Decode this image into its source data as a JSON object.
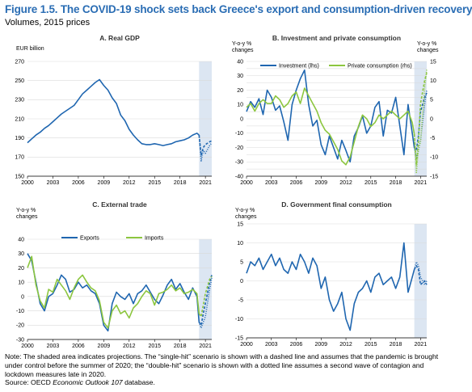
{
  "figure": {
    "title": "Figure 1.5. The COVID-19 shock sets back Greece's export and consumption-driven recovery",
    "subtitle": "Volumes, 2015 prices"
  },
  "notes": {
    "note": "Note: The shaded area indicates projections. The “single-hit” scenario is shown with a dashed line and assumes that the pandemic is brought under control before the summer of 2020; the “double-hit” scenario is shown with a dotted line assumes a second wave of contagion and lockdown measures late in 2020.",
    "source_prefix": "Source: OECD ",
    "source_italic": "Economic Outlook 107",
    "source_suffix": " database."
  },
  "colors": {
    "title": "#2a6db4",
    "blue": "#1f66b0",
    "green": "#8cc63f",
    "projection_shade": "#dce6f2",
    "grid": "#d9d9d9"
  },
  "chart_data": [
    {
      "id": "A",
      "type": "line",
      "title": "A. Real GDP",
      "unit_label": "EUR billion",
      "ylim": [
        150,
        270
      ],
      "yticks": [
        150,
        170,
        190,
        210,
        230,
        250,
        270
      ],
      "xlim": [
        2000,
        2021.75
      ],
      "xticks": [
        2000,
        2003,
        2006,
        2009,
        2012,
        2015,
        2018,
        2021
      ],
      "projection_start": 2020.25,
      "series": [
        {
          "axis": "left",
          "color": "#1f66b0",
          "x": [
            2000,
            2000.5,
            2001,
            2001.5,
            2002,
            2002.5,
            2003,
            2003.5,
            2004,
            2004.5,
            2005,
            2005.5,
            2006,
            2006.5,
            2007,
            2007.5,
            2008,
            2008.5,
            2009,
            2009.5,
            2010,
            2010.5,
            2011,
            2011.5,
            2012,
            2012.5,
            2013,
            2013.5,
            2014,
            2014.5,
            2015,
            2015.5,
            2016,
            2016.5,
            2017,
            2017.5,
            2018,
            2018.5,
            2019,
            2019.5,
            2020,
            2020.25
          ],
          "values": [
            185,
            189,
            193,
            196,
            200,
            203,
            207,
            211,
            215,
            218,
            221,
            224,
            230,
            236,
            240,
            244,
            248,
            251,
            245,
            240,
            232,
            226,
            214,
            208,
            199,
            193,
            188,
            184,
            183,
            183,
            184,
            183,
            182,
            183,
            184,
            186,
            187,
            188,
            190,
            193,
            195,
            193
          ]
        },
        {
          "axis": "left",
          "color": "#1f66b0",
          "dash": "dashed",
          "x": [
            2020.25,
            2020.5,
            2020.75,
            2021,
            2021.5,
            2021.75
          ],
          "values": [
            193,
            172,
            180,
            183,
            186,
            187
          ]
        },
        {
          "axis": "left",
          "color": "#1f66b0",
          "dash": "dotted",
          "x": [
            2020.25,
            2020.5,
            2020.75,
            2021,
            2021.5,
            2021.75
          ],
          "values": [
            193,
            166,
            177,
            174,
            182,
            185
          ]
        }
      ]
    },
    {
      "id": "B",
      "type": "line",
      "title": "B. Investment and private consumption",
      "left_unit_label": "Y-o-y %\nchanges",
      "right_unit_label": "Y-o-y %\nchanges",
      "ylim": [
        -40,
        40
      ],
      "yticks": [
        -40,
        -35,
        -30,
        -25,
        -20,
        -15,
        -10,
        -5,
        0,
        5,
        10,
        15,
        20,
        25,
        30,
        35,
        40
      ],
      "yticklabels": [
        "-40",
        "",
        "-30",
        "",
        "-20",
        "",
        "-10",
        "",
        "0",
        "",
        "10",
        "",
        "20",
        "",
        "30",
        "",
        "40"
      ],
      "ylim_right": [
        -15,
        15
      ],
      "yticks_right": [
        -15,
        -10,
        -5,
        0,
        5,
        10,
        15
      ],
      "xlim": [
        2000,
        2021.75
      ],
      "xticks": [
        2000,
        2003,
        2006,
        2009,
        2012,
        2015,
        2018,
        2021
      ],
      "projection_start": 2020.25,
      "legend": [
        {
          "name": "Investment (lhs)",
          "color": "#1f66b0"
        },
        {
          "name": "Private consumption (rhs)",
          "color": "#8cc63f"
        }
      ],
      "series": [
        {
          "name": "Investment (lhs)",
          "axis": "left",
          "color": "#1f66b0",
          "x": [
            2000,
            2000.5,
            2001,
            2001.5,
            2002,
            2002.5,
            2003,
            2003.5,
            2004,
            2004.5,
            2005,
            2005.5,
            2006,
            2006.5,
            2007,
            2007.5,
            2008,
            2008.5,
            2009,
            2009.5,
            2010,
            2010.5,
            2011,
            2011.5,
            2012,
            2012.5,
            2013,
            2013.5,
            2014,
            2014.5,
            2015,
            2015.5,
            2016,
            2016.5,
            2017,
            2017.5,
            2018,
            2018.5,
            2019,
            2019.5,
            2020,
            2020.25
          ],
          "values": [
            5,
            12,
            8,
            14,
            3,
            20,
            15,
            6,
            9,
            -2,
            -15,
            10,
            20,
            28,
            34,
            10,
            -5,
            -1,
            -18,
            -25,
            -12,
            -20,
            -28,
            -15,
            -22,
            -30,
            -12,
            -6,
            2,
            -10,
            -5,
            8,
            12,
            -12,
            6,
            4,
            15,
            -5,
            -25,
            10,
            -10,
            -20
          ]
        },
        {
          "name": "Investment (lhs)",
          "axis": "left",
          "color": "#1f66b0",
          "dash": "dashed",
          "x": [
            2020.25,
            2020.5,
            2020.75,
            2021,
            2021.5,
            2021.75
          ],
          "values": [
            -20,
            -22,
            -12,
            5,
            15,
            18
          ]
        },
        {
          "name": "Investment (lhs)",
          "axis": "left",
          "color": "#1f66b0",
          "dash": "dotted",
          "x": [
            2020.25,
            2020.5,
            2020.75,
            2021,
            2021.5,
            2021.75
          ],
          "values": [
            -20,
            -28,
            -22,
            -15,
            10,
            20
          ]
        },
        {
          "name": "Private consumption (rhs)",
          "axis": "right",
          "color": "#8cc63f",
          "x": [
            2000,
            2000.5,
            2001,
            2001.5,
            2002,
            2002.5,
            2003,
            2003.5,
            2004,
            2004.5,
            2005,
            2005.5,
            2006,
            2006.5,
            2007,
            2007.5,
            2008,
            2008.5,
            2009,
            2009.5,
            2010,
            2010.5,
            2011,
            2011.5,
            2012,
            2012.5,
            2013,
            2013.5,
            2014,
            2014.5,
            2015,
            2015.5,
            2016,
            2016.5,
            2017,
            2017.5,
            2018,
            2018.5,
            2019,
            2019.5,
            2020,
            2020.25
          ],
          "values": [
            3,
            4,
            2,
            4,
            5,
            4,
            4,
            6,
            5,
            3,
            4,
            6,
            7,
            4,
            8,
            6,
            4,
            2,
            -1,
            -3,
            -4,
            -6,
            -8,
            -11,
            -12,
            -10,
            -6,
            -2,
            1,
            0,
            -2,
            -1,
            1,
            0,
            1,
            2,
            1,
            0,
            1,
            2,
            -1,
            -4
          ]
        },
        {
          "name": "Private consumption (rhs)",
          "axis": "right",
          "color": "#8cc63f",
          "dash": "dashed",
          "x": [
            2020.25,
            2020.5,
            2020.75,
            2021,
            2021.5,
            2021.75
          ],
          "values": [
            -4,
            -12,
            -6,
            4,
            10,
            12
          ]
        },
        {
          "name": "Private consumption (rhs)",
          "axis": "right",
          "color": "#8cc63f",
          "dash": "dotted",
          "x": [
            2020.25,
            2020.5,
            2020.75,
            2021,
            2021.5,
            2021.75
          ],
          "values": [
            -4,
            -14,
            -8,
            -6,
            8,
            13
          ]
        }
      ]
    },
    {
      "id": "C",
      "type": "line",
      "title": "C. External trade",
      "unit_label": "Y-o-y %\nchanges",
      "ylim": [
        -30,
        40
      ],
      "yticks": [
        -30,
        -20,
        -10,
        0,
        10,
        20,
        30,
        40
      ],
      "xlim": [
        2000,
        2021.75
      ],
      "xticks": [
        2000,
        2003,
        2006,
        2009,
        2012,
        2015,
        2018,
        2021
      ],
      "projection_start": 2020.25,
      "legend": [
        {
          "name": "Exports",
          "color": "#1f66b0"
        },
        {
          "name": "Imports",
          "color": "#8cc63f"
        }
      ],
      "series": [
        {
          "name": "Exports",
          "axis": "left",
          "color": "#1f66b0",
          "x": [
            2000,
            2000.5,
            2001,
            2001.5,
            2002,
            2002.5,
            2003,
            2003.5,
            2004,
            2004.5,
            2005,
            2005.5,
            2006,
            2006.5,
            2007,
            2007.5,
            2008,
            2008.5,
            2009,
            2009.5,
            2010,
            2010.5,
            2011,
            2011.5,
            2012,
            2012.5,
            2013,
            2013.5,
            2014,
            2014.5,
            2015,
            2015.5,
            2016,
            2016.5,
            2017,
            2017.5,
            2018,
            2018.5,
            2019,
            2019.5,
            2020,
            2020.25
          ],
          "values": [
            30,
            25,
            10,
            -5,
            -10,
            0,
            2,
            8,
            15,
            12,
            3,
            5,
            10,
            6,
            8,
            4,
            2,
            -5,
            -20,
            -24,
            -5,
            3,
            0,
            -2,
            2,
            -5,
            2,
            4,
            8,
            3,
            -2,
            -5,
            1,
            8,
            12,
            5,
            9,
            3,
            -2,
            6,
            0,
            -18
          ]
        },
        {
          "name": "Exports",
          "axis": "left",
          "color": "#1f66b0",
          "dash": "dashed",
          "x": [
            2020.25,
            2020.5,
            2020.75,
            2021,
            2021.5,
            2021.75
          ],
          "values": [
            -18,
            -20,
            -12,
            -5,
            10,
            15
          ]
        },
        {
          "name": "Exports",
          "axis": "left",
          "color": "#1f66b0",
          "dash": "dotted",
          "x": [
            2020.25,
            2020.5,
            2020.75,
            2021,
            2021.5,
            2021.75
          ],
          "values": [
            -18,
            -22,
            -18,
            -14,
            5,
            13
          ]
        },
        {
          "name": "Imports",
          "axis": "left",
          "color": "#8cc63f",
          "x": [
            2000,
            2000.5,
            2001,
            2001.5,
            2002,
            2002.5,
            2003,
            2003.5,
            2004,
            2004.5,
            2005,
            2005.5,
            2006,
            2006.5,
            2007,
            2007.5,
            2008,
            2008.5,
            2009,
            2009.5,
            2010,
            2010.5,
            2011,
            2011.5,
            2012,
            2012.5,
            2013,
            2013.5,
            2014,
            2014.5,
            2015,
            2015.5,
            2016,
            2016.5,
            2017,
            2017.5,
            2018,
            2018.5,
            2019,
            2019.5,
            2020,
            2020.25
          ],
          "values": [
            20,
            28,
            8,
            -3,
            -8,
            5,
            3,
            12,
            8,
            4,
            -2,
            6,
            12,
            15,
            10,
            6,
            4,
            -3,
            -18,
            -22,
            -10,
            -6,
            -12,
            -10,
            -15,
            -8,
            -5,
            0,
            4,
            2,
            -6,
            2,
            3,
            5,
            8,
            4,
            6,
            2,
            3,
            5,
            2,
            -12
          ]
        },
        {
          "name": "Imports",
          "axis": "left",
          "color": "#8cc63f",
          "dash": "dashed",
          "x": [
            2020.25,
            2020.5,
            2020.75,
            2021,
            2021.5,
            2021.75
          ],
          "values": [
            -12,
            -14,
            -6,
            2,
            12,
            14
          ]
        }
      ]
    },
    {
      "id": "D",
      "type": "line",
      "title": "D. Government final consumption",
      "unit_label": "Y-o-y %\nchanges",
      "ylim": [
        -15,
        15
      ],
      "yticks": [
        -15,
        -10,
        -5,
        0,
        5,
        10,
        15
      ],
      "xlim": [
        2000,
        2021.75
      ],
      "xticks": [
        2000,
        2003,
        2006,
        2009,
        2012,
        2015,
        2018,
        2021
      ],
      "projection_start": 2020.25,
      "series": [
        {
          "axis": "left",
          "color": "#1f66b0",
          "x": [
            2000,
            2000.5,
            2001,
            2001.5,
            2002,
            2002.5,
            2003,
            2003.5,
            2004,
            2004.5,
            2005,
            2005.5,
            2006,
            2006.5,
            2007,
            2007.5,
            2008,
            2008.5,
            2009,
            2009.5,
            2010,
            2010.5,
            2011,
            2011.5,
            2012,
            2012.5,
            2013,
            2013.5,
            2014,
            2014.5,
            2015,
            2015.5,
            2016,
            2016.5,
            2017,
            2017.5,
            2018,
            2018.5,
            2019,
            2019.5,
            2020,
            2020.25
          ],
          "values": [
            2,
            5,
            4,
            6,
            3,
            5,
            7,
            4,
            6,
            3,
            2,
            5,
            3,
            7,
            5,
            2,
            6,
            4,
            -2,
            1,
            -5,
            -8,
            -6,
            -3,
            -10,
            -13,
            -6,
            -3,
            -2,
            0,
            -3,
            1,
            2,
            -1,
            0,
            1,
            -2,
            1,
            10,
            -3,
            1,
            3
          ]
        },
        {
          "axis": "left",
          "color": "#1f66b0",
          "dash": "dashed",
          "x": [
            2020.25,
            2020.5,
            2020.75,
            2021,
            2021.5,
            2021.75
          ],
          "values": [
            3,
            4,
            3,
            -1,
            0,
            -1
          ]
        },
        {
          "axis": "left",
          "color": "#1f66b0",
          "dash": "dotted",
          "x": [
            2020.25,
            2020.5,
            2020.75,
            2021,
            2021.5,
            2021.75
          ],
          "values": [
            3,
            5,
            4,
            1,
            -1,
            0
          ]
        }
      ]
    }
  ]
}
